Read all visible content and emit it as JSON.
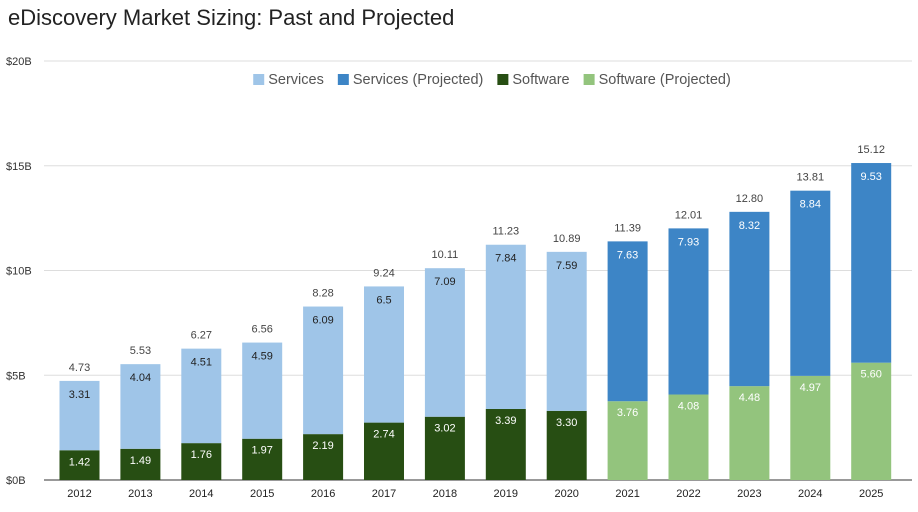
{
  "chart_data": {
    "type": "bar",
    "stacked": true,
    "title": "eDiscovery Market Sizing: Past and Projected",
    "xlabel": "",
    "ylabel": "",
    "ylim": [
      0,
      20
    ],
    "yticks": [
      0,
      5,
      10,
      15,
      20
    ],
    "ytick_labels": [
      "$0B",
      "$5B",
      "$10B",
      "$15B",
      "$20B"
    ],
    "grid": true,
    "legend_position": "top-center",
    "legend": [
      {
        "name": "Services",
        "color": "#9fc5e8"
      },
      {
        "name": "Services (Projected)",
        "color": "#3d85c6"
      },
      {
        "name": "Software",
        "color": "#274e13"
      },
      {
        "name": "Software (Projected)",
        "color": "#93c47d"
      }
    ],
    "categories": [
      "2012",
      "2013",
      "2014",
      "2015",
      "2016",
      "2017",
      "2018",
      "2019",
      "2020",
      "2021",
      "2022",
      "2023",
      "2024",
      "2025"
    ],
    "projected": [
      false,
      false,
      false,
      false,
      false,
      false,
      false,
      false,
      false,
      true,
      true,
      true,
      true,
      true
    ],
    "software": [
      1.42,
      1.49,
      1.76,
      1.97,
      2.19,
      2.74,
      3.02,
      3.39,
      3.3,
      3.76,
      4.08,
      4.48,
      4.97,
      5.6
    ],
    "software_labels": [
      "1.42",
      "1.49",
      "1.76",
      "1.97",
      "2.19",
      "2.74",
      "3.02",
      "3.39",
      "3.30",
      "3.76",
      "4.08",
      "4.48",
      "4.97",
      "5.60"
    ],
    "services": [
      3.31,
      4.04,
      4.51,
      4.59,
      6.09,
      6.5,
      7.09,
      7.84,
      7.59,
      7.63,
      7.93,
      8.32,
      8.84,
      9.53
    ],
    "services_labels": [
      "3.31",
      "4.04",
      "4.51",
      "4.59",
      "6.09",
      "6.5",
      "7.09",
      "7.84",
      "7.59",
      "7.63",
      "7.93",
      "8.32",
      "8.84",
      "9.53"
    ],
    "totals": [
      4.73,
      5.53,
      6.27,
      6.56,
      8.28,
      9.24,
      10.11,
      11.23,
      10.89,
      11.39,
      12.01,
      12.8,
      13.81,
      15.12
    ],
    "total_labels": [
      "4.73",
      "5.53",
      "6.27",
      "6.56",
      "8.28",
      "9.24",
      "10.11",
      "11.23",
      "10.89",
      "11.39",
      "12.01",
      "12.80",
      "13.81",
      "15.12"
    ]
  }
}
